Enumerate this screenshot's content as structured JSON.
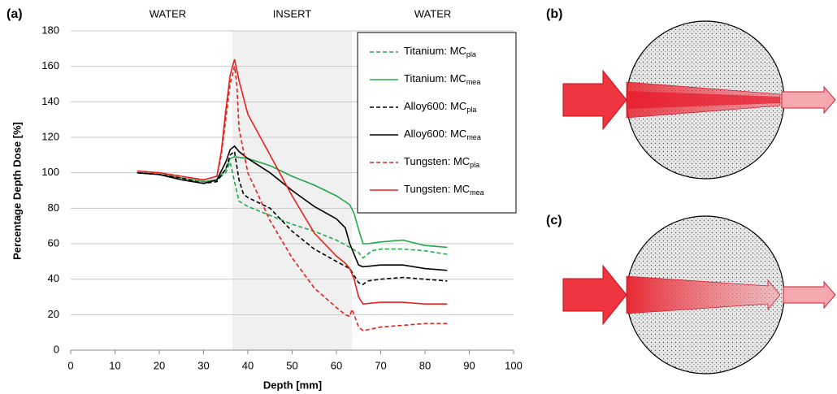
{
  "chart_data": {
    "type": "line",
    "panel_label": "(a)",
    "xlabel": "Depth [mm]",
    "ylabel": "Percentage Depth Dose [%]",
    "xlim": [
      0,
      100
    ],
    "xticks": [
      0,
      10,
      20,
      30,
      40,
      50,
      60,
      70,
      80,
      90,
      100
    ],
    "ylim": [
      0,
      180
    ],
    "yticks": [
      0,
      20,
      40,
      60,
      80,
      100,
      120,
      140,
      160,
      180
    ],
    "grid": true,
    "insert_range": [
      36.5,
      63.5
    ],
    "region_labels": [
      "WATER",
      "INSERT",
      "WATER"
    ],
    "series": [
      {
        "name": "Titanium: MC",
        "name_sub": "pla",
        "color": "#22a84a",
        "dashed": true,
        "x": [
          15,
          20,
          25,
          30,
          33,
          35,
          36,
          37,
          38,
          40,
          45,
          50,
          55,
          60,
          63,
          65,
          66,
          68,
          70,
          75,
          80,
          85
        ],
        "values": [
          100,
          99,
          97,
          95,
          96,
          100,
          106,
          95,
          84,
          81,
          76,
          71,
          67,
          62,
          58,
          55,
          52,
          56,
          57,
          57,
          56,
          54
        ]
      },
      {
        "name": "Titanium: MC",
        "name_sub": "mea",
        "color": "#22a84a",
        "dashed": false,
        "x": [
          15,
          20,
          25,
          30,
          33,
          35,
          36,
          37,
          40,
          45,
          50,
          55,
          60,
          63,
          64,
          65,
          66,
          67,
          70,
          75,
          80,
          85
        ],
        "values": [
          100,
          99,
          97,
          95,
          96,
          102,
          108,
          109,
          108,
          104,
          98,
          93,
          87,
          82,
          77,
          68,
          60,
          60,
          61,
          62,
          59,
          58
        ]
      },
      {
        "name": "Alloy600: MC",
        "name_sub": "pla",
        "color": "#000000",
        "dashed": true,
        "x": [
          15,
          20,
          25,
          30,
          33,
          35,
          36,
          37,
          38,
          39,
          40,
          45,
          50,
          55,
          60,
          63,
          64,
          65,
          66,
          67,
          70,
          75,
          80,
          85
        ],
        "values": [
          100,
          99,
          97,
          94,
          95,
          102,
          110,
          112,
          96,
          88,
          86,
          80,
          67,
          57,
          50,
          46,
          42,
          38,
          37,
          39,
          40,
          41,
          40,
          39
        ]
      },
      {
        "name": "Alloy600: MC",
        "name_sub": "mea",
        "color": "#000000",
        "dashed": false,
        "x": [
          15,
          20,
          25,
          30,
          33,
          35,
          36,
          37,
          38,
          40,
          45,
          50,
          55,
          60,
          62,
          63,
          64,
          65,
          66,
          70,
          75,
          80,
          85
        ],
        "values": [
          100,
          99,
          96,
          94,
          96,
          106,
          113,
          115,
          112,
          108,
          100,
          90,
          81,
          74,
          69,
          60,
          54,
          48,
          47,
          48,
          48,
          46,
          45
        ]
      },
      {
        "name": "Tungsten: MC",
        "name_sub": "pla",
        "color": "#e8201c",
        "dashed": true,
        "x": [
          15,
          20,
          25,
          30,
          33,
          34,
          35,
          36,
          37,
          37.5,
          38,
          40,
          45,
          50,
          55,
          60,
          62,
          63,
          63.5,
          64,
          65,
          66,
          70,
          75,
          80,
          85
        ],
        "values": [
          101,
          100,
          98,
          96,
          98,
          110,
          130,
          150,
          160,
          150,
          125,
          100,
          73,
          52,
          35,
          24,
          20,
          19,
          23,
          20,
          13,
          11,
          13,
          14,
          15,
          15
        ]
      },
      {
        "name": "Tungsten: MC",
        "name_sub": "mea",
        "color": "#e8201c",
        "dashed": false,
        "x": [
          15,
          20,
          25,
          30,
          33,
          34,
          35,
          36,
          37,
          38,
          40,
          45,
          50,
          55,
          60,
          62,
          63,
          64,
          65,
          66,
          70,
          75,
          80,
          85
        ],
        "values": [
          101,
          100,
          98,
          96,
          98,
          112,
          135,
          155,
          164,
          152,
          133,
          110,
          87,
          66,
          53,
          49,
          46,
          40,
          30,
          26,
          27,
          27,
          26,
          26
        ]
      }
    ]
  },
  "diagrams": {
    "panel_labels": [
      "(b)",
      "(c)"
    ]
  }
}
